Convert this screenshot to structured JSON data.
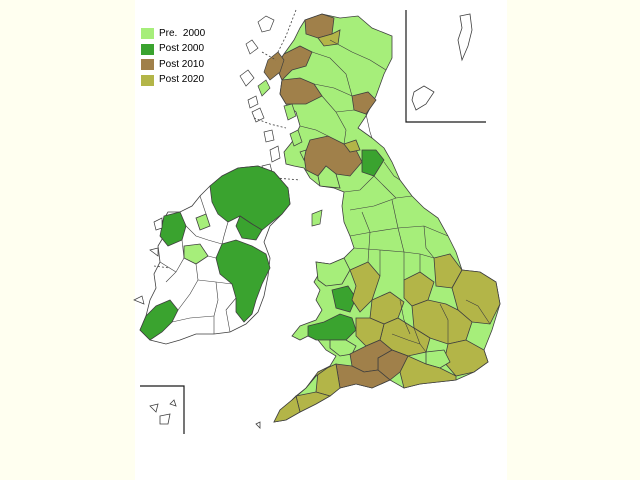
{
  "colors": {
    "pre_2000": "#a6ee7a",
    "post_2000": "#3aa32f",
    "post_2010": "#a0804a",
    "post_2020": "#b3b548",
    "unassigned": "#ffffff",
    "boundary": "#3f3f3f",
    "background": "#fffff0"
  },
  "legend": {
    "items": [
      {
        "label": "Pre.  2000",
        "color": "#a6ee7a"
      },
      {
        "label": "Post 2000",
        "color": "#3aa32f"
      },
      {
        "label": "Post 2010",
        "color": "#a0804a"
      },
      {
        "label": "Post 2020",
        "color": "#b3b548"
      }
    ]
  }
}
